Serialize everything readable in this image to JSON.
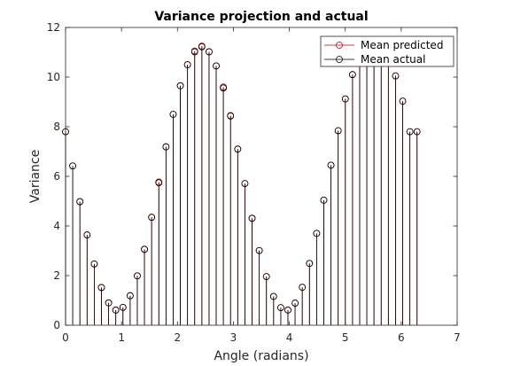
{
  "chart_data": {
    "type": "stem",
    "title": "Variance projection and actual",
    "xlabel": "Angle (radians)",
    "ylabel": "Variance",
    "xlim": [
      0,
      7
    ],
    "ylim": [
      0,
      12
    ],
    "xticks": [
      0,
      1,
      2,
      3,
      4,
      5,
      6,
      7
    ],
    "yticks": [
      0,
      2,
      4,
      6,
      8,
      10,
      12
    ],
    "legend_position": "top-right",
    "series": [
      {
        "name": "Mean predicted",
        "color": "#c00000",
        "x": [
          0,
          0.1282,
          0.2565,
          0.3847,
          0.5129,
          0.6411,
          0.7694,
          0.8976,
          1.0258,
          1.1541,
          1.2823,
          1.4105,
          1.5387,
          1.667,
          1.7952,
          1.9234,
          2.0517,
          2.1799,
          2.3081,
          2.4363,
          2.5646,
          2.6928,
          2.821,
          2.9493,
          3.0775,
          3.2057,
          3.3339,
          3.4622,
          3.5904,
          3.7186,
          3.8468,
          3.9751,
          4.1033,
          4.2315,
          4.3598,
          4.488,
          4.6162,
          4.7444,
          4.8727,
          5.0009,
          5.1291,
          5.2574,
          5.3856,
          5.5138,
          5.642,
          5.7703,
          5.8985,
          6.0267,
          6.155,
          6.2832
        ],
        "values": [
          7.8,
          6.42,
          4.98,
          3.64,
          2.47,
          1.52,
          0.9,
          0.61,
          0.72,
          1.19,
          1.99,
          3.06,
          4.35,
          5.77,
          7.19,
          8.5,
          9.65,
          10.5,
          11.05,
          11.25,
          11.02,
          10.45,
          9.6,
          8.45,
          7.1,
          5.71,
          4.31,
          3.01,
          1.96,
          1.16,
          0.71,
          0.61,
          0.89,
          1.53,
          2.49,
          3.7,
          5.04,
          6.45,
          7.84,
          9.12,
          10.1,
          10.9,
          11.4,
          11.5,
          11.3,
          10.9,
          10.05,
          9.03,
          7.8,
          7.8
        ]
      },
      {
        "name": "Mean actual",
        "color": "#000000",
        "x": [
          0,
          0.1282,
          0.2565,
          0.3847,
          0.5129,
          0.6411,
          0.7694,
          0.8976,
          1.0258,
          1.1541,
          1.2823,
          1.4105,
          1.5387,
          1.667,
          1.7952,
          1.9234,
          2.0517,
          2.1799,
          2.3081,
          2.4363,
          2.5646,
          2.6928,
          2.821,
          2.9493,
          3.0775,
          3.2057,
          3.3339,
          3.4622,
          3.5904,
          3.7186,
          3.8468,
          3.9751,
          4.1033,
          4.2315,
          4.3598,
          4.488,
          4.6162,
          4.7444,
          4.8727,
          5.0009,
          5.1291,
          5.2574,
          5.3856,
          5.5138,
          5.642,
          5.7703,
          5.8985,
          6.0267,
          6.155,
          6.2832
        ],
        "values": [
          7.8,
          6.42,
          4.98,
          3.64,
          2.47,
          1.52,
          0.9,
          0.61,
          0.72,
          1.19,
          1.99,
          3.06,
          4.35,
          5.74,
          7.19,
          8.5,
          9.65,
          10.5,
          11.02,
          11.22,
          11.02,
          10.45,
          9.56,
          8.43,
          7.1,
          5.71,
          4.31,
          3.01,
          1.96,
          1.16,
          0.71,
          0.61,
          0.89,
          1.53,
          2.49,
          3.7,
          5.04,
          6.45,
          7.84,
          9.12,
          10.1,
          10.9,
          11.4,
          11.5,
          11.3,
          10.9,
          10.05,
          9.03,
          7.8,
          7.8
        ]
      }
    ]
  }
}
